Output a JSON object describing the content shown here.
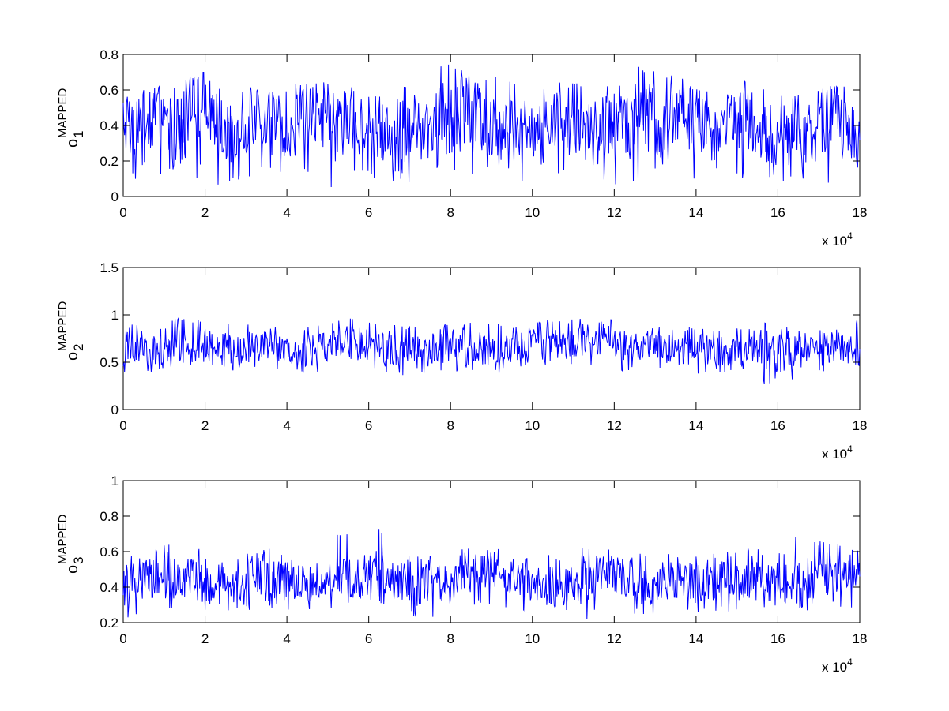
{
  "chart_data": [
    {
      "type": "line",
      "ylabel": {
        "base": "o",
        "sub": "1",
        "sup": "MAPPED"
      },
      "xlim": [
        0,
        180000
      ],
      "ylim": [
        0,
        0.8
      ],
      "x_ticks": [
        0,
        20000,
        40000,
        60000,
        80000,
        100000,
        120000,
        140000,
        160000,
        180000
      ],
      "x_tick_labels": [
        "0",
        "2",
        "4",
        "6",
        "8",
        "10",
        "12",
        "14",
        "16",
        "18"
      ],
      "y_ticks": [
        0,
        0.2,
        0.4,
        0.6,
        0.8
      ],
      "y_tick_labels": [
        "0",
        "0.2",
        "0.4",
        "0.6",
        "0.8"
      ],
      "x_multiplier": {
        "text": "x 10",
        "exp": "4"
      },
      "color": "#0000ff",
      "series": [
        {
          "x_step": 4000,
          "values": [
            0.45,
            0.3,
            0.5,
            0.35,
            0.42,
            0.55,
            0.38,
            0.3,
            0.48,
            0.4,
            0.33,
            0.45,
            0.5,
            0.36,
            0.42,
            0.4,
            0.31,
            0.28,
            0.4,
            0.37,
            0.45,
            0.5,
            0.42,
            0.38,
            0.35,
            0.3,
            0.44,
            0.4,
            0.38,
            0.33,
            0.42,
            0.4,
            0.46,
            0.36,
            0.48,
            0.45,
            0.33,
            0.44,
            0.4,
            0.38,
            0.3,
            0.36,
            0.35,
            0.44,
            0.4,
            0.32
          ]
        }
      ],
      "min_values": [
        0.18,
        0.05,
        0.12,
        0.08,
        0.14,
        0.1,
        0.05,
        0.08,
        0.16,
        0.12,
        0.09,
        0.1,
        0.15,
        0.05,
        0.18,
        0.08,
        0.1,
        0.06,
        0.22,
        0.2,
        0.05,
        0.14,
        0.1,
        0.18,
        0.08,
        0.12,
        0.2,
        0.11,
        0.1,
        0.06,
        0.18,
        0.06,
        0.15,
        0.12,
        0.2,
        0.08,
        0.12,
        0.14,
        0.1,
        0.15,
        0.05,
        0.12,
        0.08,
        0.03,
        0.1,
        0.15
      ],
      "max_values": [
        0.6,
        0.55,
        0.62,
        0.58,
        0.7,
        0.68,
        0.6,
        0.55,
        0.62,
        0.58,
        0.6,
        0.65,
        0.65,
        0.6,
        0.62,
        0.58,
        0.55,
        0.5,
        0.62,
        0.55,
        0.75,
        0.7,
        0.68,
        0.65,
        0.55,
        0.55,
        0.66,
        0.65,
        0.58,
        0.55,
        0.64,
        0.62,
        0.73,
        0.6,
        0.7,
        0.62,
        0.55,
        0.6,
        0.65,
        0.62,
        0.52,
        0.58,
        0.56,
        0.66,
        0.62,
        0.56
      ]
    },
    {
      "type": "line",
      "ylabel": {
        "base": "o",
        "sub": "2",
        "sup": "MAPPED"
      },
      "xlim": [
        0,
        180000
      ],
      "ylim": [
        0,
        1.5
      ],
      "x_ticks": [
        0,
        20000,
        40000,
        60000,
        80000,
        100000,
        120000,
        140000,
        160000,
        180000
      ],
      "x_tick_labels": [
        "0",
        "2",
        "4",
        "6",
        "8",
        "10",
        "12",
        "14",
        "16",
        "18"
      ],
      "y_ticks": [
        0,
        0.5,
        1,
        1.5
      ],
      "y_tick_labels": [
        "0",
        "0.5",
        "1",
        "1.5"
      ],
      "x_multiplier": {
        "text": "x 10",
        "exp": "4"
      },
      "color": "#0000ff",
      "series": [
        {
          "x_step": 4000,
          "values": [
            0.65,
            0.6,
            0.62,
            0.68,
            0.65,
            0.66,
            0.64,
            0.63,
            0.66,
            0.65,
            0.62,
            0.6,
            0.64,
            0.7,
            0.72,
            0.66,
            0.65,
            0.62,
            0.6,
            0.63,
            0.66,
            0.6,
            0.65,
            0.62,
            0.66,
            0.7,
            0.68,
            0.7,
            0.72,
            0.74,
            0.7,
            0.66,
            0.65,
            0.64,
            0.62,
            0.64,
            0.62,
            0.6,
            0.63,
            0.65,
            0.58,
            0.66,
            0.64,
            0.68,
            0.66,
            0.64
          ]
        }
      ],
      "min_values": [
        0.4,
        0.35,
        0.42,
        0.48,
        0.45,
        0.46,
        0.42,
        0.4,
        0.45,
        0.44,
        0.4,
        0.38,
        0.42,
        0.48,
        0.5,
        0.44,
        0.4,
        0.38,
        0.36,
        0.4,
        0.44,
        0.38,
        0.4,
        0.38,
        0.44,
        0.46,
        0.48,
        0.45,
        0.46,
        0.5,
        0.4,
        0.44,
        0.42,
        0.38,
        0.4,
        0.42,
        0.38,
        0.4,
        0.4,
        0.42,
        0.25,
        0.44,
        0.4,
        0.45,
        0.46,
        0.45
      ],
      "max_values": [
        0.95,
        0.8,
        0.85,
        0.9,
        1.0,
        0.9,
        0.85,
        0.92,
        0.85,
        0.88,
        0.85,
        0.8,
        0.9,
        0.95,
        1.0,
        0.92,
        0.9,
        0.85,
        0.88,
        0.9,
        0.9,
        0.85,
        0.92,
        0.9,
        0.9,
        0.92,
        0.95,
        0.9,
        0.98,
        0.95,
        0.92,
        0.88,
        0.9,
        0.86,
        0.82,
        0.88,
        0.85,
        0.88,
        0.84,
        0.88,
        0.92,
        0.86,
        0.85,
        0.88,
        0.9,
        0.98
      ]
    },
    {
      "type": "line",
      "ylabel": {
        "base": "o",
        "sub": "3",
        "sup": "MAPPED"
      },
      "xlim": [
        0,
        180000
      ],
      "ylim": [
        0.2,
        1
      ],
      "x_ticks": [
        0,
        20000,
        40000,
        60000,
        80000,
        100000,
        120000,
        140000,
        160000,
        180000
      ],
      "x_tick_labels": [
        "0",
        "2",
        "4",
        "6",
        "8",
        "10",
        "12",
        "14",
        "16",
        "18"
      ],
      "y_ticks": [
        0.2,
        0.4,
        0.6,
        0.8,
        1
      ],
      "y_tick_labels": [
        "0.2",
        "0.4",
        "0.6",
        "0.8",
        "1"
      ],
      "x_multiplier": {
        "text": "x 10",
        "exp": "4"
      },
      "color": "#0000ff",
      "series": [
        {
          "x_step": 4000,
          "values": [
            0.4,
            0.42,
            0.44,
            0.46,
            0.45,
            0.42,
            0.43,
            0.4,
            0.46,
            0.45,
            0.44,
            0.42,
            0.38,
            0.4,
            0.45,
            0.48,
            0.44,
            0.42,
            0.4,
            0.42,
            0.44,
            0.46,
            0.5,
            0.48,
            0.45,
            0.43,
            0.4,
            0.42,
            0.4,
            0.46,
            0.48,
            0.44,
            0.4,
            0.42,
            0.44,
            0.42,
            0.43,
            0.44,
            0.42,
            0.44,
            0.42,
            0.4,
            0.45,
            0.48,
            0.44,
            0.46
          ]
        }
      ],
      "min_values": [
        0.25,
        0.22,
        0.28,
        0.3,
        0.3,
        0.26,
        0.28,
        0.26,
        0.28,
        0.3,
        0.28,
        0.25,
        0.24,
        0.28,
        0.3,
        0.32,
        0.28,
        0.26,
        0.22,
        0.26,
        0.28,
        0.3,
        0.32,
        0.3,
        0.28,
        0.24,
        0.22,
        0.26,
        0.22,
        0.28,
        0.3,
        0.28,
        0.24,
        0.26,
        0.28,
        0.26,
        0.26,
        0.28,
        0.26,
        0.28,
        0.26,
        0.24,
        0.28,
        0.3,
        0.28,
        0.3
      ],
      "max_values": [
        0.6,
        0.55,
        0.58,
        0.65,
        0.62,
        0.58,
        0.56,
        0.55,
        0.6,
        0.62,
        0.56,
        0.55,
        0.52,
        0.56,
        0.7,
        0.74,
        0.62,
        0.58,
        0.56,
        0.58,
        0.6,
        0.62,
        0.62,
        0.6,
        0.58,
        0.56,
        0.6,
        0.58,
        0.56,
        0.62,
        0.65,
        0.6,
        0.56,
        0.58,
        0.6,
        0.58,
        0.56,
        0.6,
        0.58,
        0.62,
        0.6,
        0.56,
        0.68,
        0.66,
        0.6,
        0.62
      ]
    }
  ]
}
